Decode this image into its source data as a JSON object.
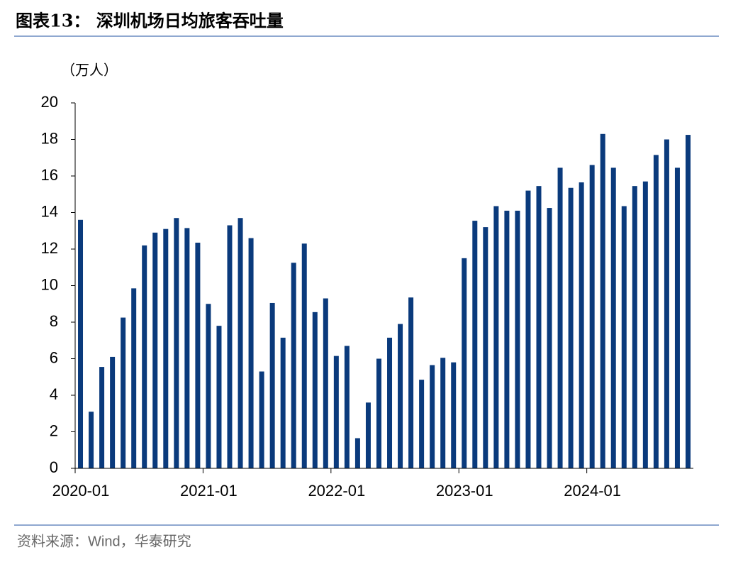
{
  "chart_data": {
    "type": "bar",
    "title": "图表13：  深圳机场日均旅客吞吐量",
    "y_label": "（万人）",
    "source": "资料来源：Wind，华泰研究",
    "color": "#0a3a7c",
    "categories": [
      "2020-01",
      null,
      null,
      null,
      null,
      null,
      null,
      null,
      null,
      null,
      null,
      null,
      "2021-01",
      null,
      null,
      null,
      null,
      null,
      null,
      null,
      null,
      null,
      null,
      null,
      "2022-01",
      null,
      null,
      null,
      null,
      null,
      null,
      null,
      null,
      null,
      null,
      null,
      "2023-01",
      null,
      null,
      null,
      null,
      null,
      null,
      null,
      null,
      null,
      null,
      null,
      "2024-01",
      null,
      null,
      null,
      null,
      null,
      null,
      null,
      null,
      null
    ],
    "values": [
      13.6,
      3.1,
      5.55,
      6.1,
      8.25,
      9.85,
      12.2,
      12.9,
      13.1,
      13.7,
      13.15,
      12.35,
      9.0,
      7.8,
      13.3,
      13.7,
      12.6,
      5.3,
      9.05,
      7.15,
      11.25,
      12.3,
      8.55,
      9.3,
      6.15,
      6.7,
      1.65,
      3.6,
      6.0,
      7.15,
      7.9,
      9.35,
      4.85,
      5.65,
      6.05,
      5.8,
      11.5,
      13.55,
      13.2,
      14.35,
      14.1,
      14.1,
      15.2,
      15.45,
      14.25,
      16.45,
      15.35,
      15.65,
      16.6,
      18.3,
      16.45,
      14.35,
      15.45,
      15.7,
      17.15,
      18.0,
      16.45,
      18.25
    ],
    "ylim": [
      0,
      20
    ],
    "yticks": [
      0,
      2,
      4,
      6,
      8,
      10,
      12,
      14,
      16,
      18,
      20
    ]
  }
}
